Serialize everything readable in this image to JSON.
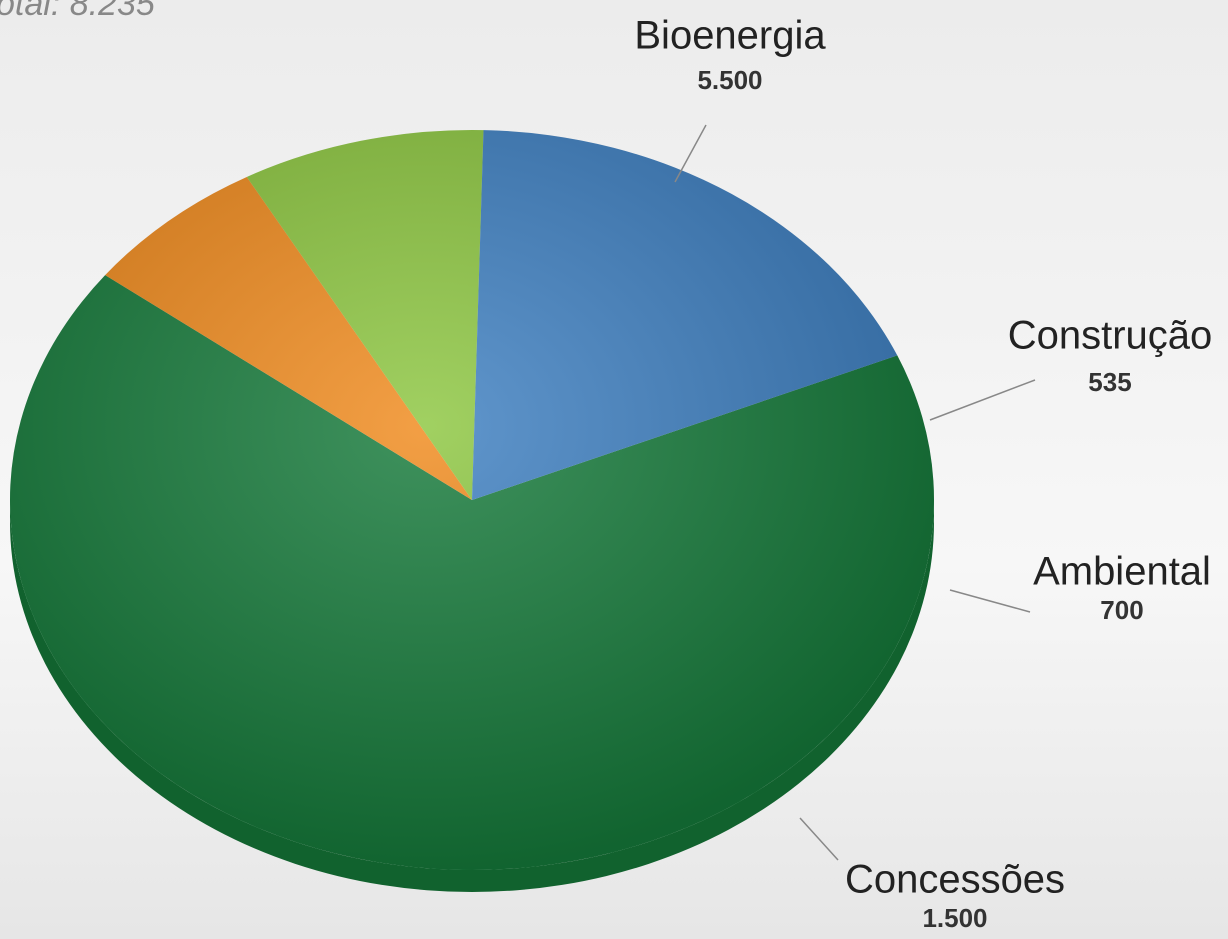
{
  "chart_data": {
    "type": "pie",
    "title": "otal: 8.235",
    "categories": [
      "Bioenergia",
      "Construção",
      "Ambiental",
      "Concessões"
    ],
    "values": [
      5500,
      535,
      700,
      1500
    ],
    "value_labels": [
      "5.500",
      "535",
      "700",
      "1.500"
    ],
    "colors": [
      "#157a3a",
      "#f08a1c",
      "#8cc63f",
      "#3d7fc1"
    ]
  }
}
